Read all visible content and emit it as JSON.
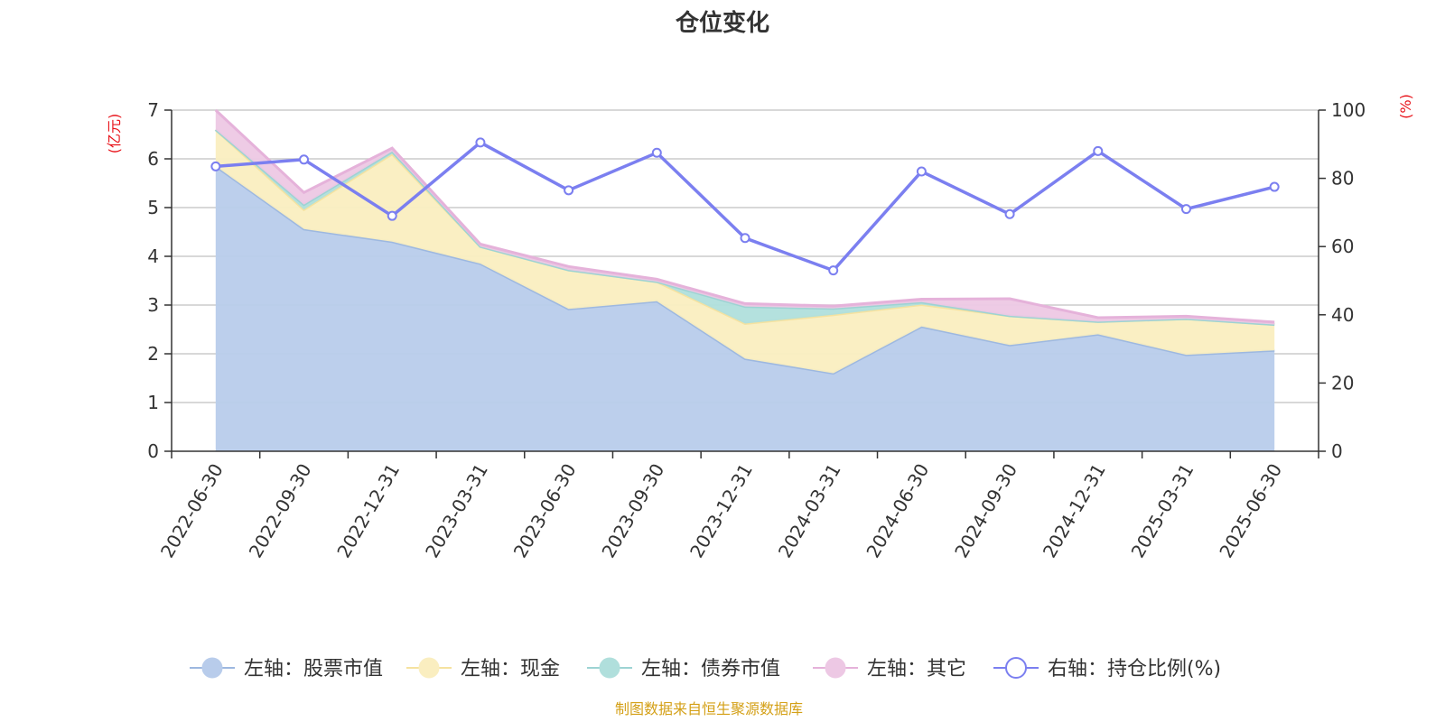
{
  "chart_data": {
    "type": "area",
    "title": "仓位变化",
    "left_axis": {
      "unit": "(亿元)",
      "ylim": [
        0,
        7
      ],
      "ticks": [
        "0",
        "1",
        "2",
        "3",
        "4",
        "5",
        "6",
        "7"
      ]
    },
    "right_axis": {
      "unit": "(%)",
      "ylim": [
        0,
        100
      ],
      "ticks": [
        "0",
        "20",
        "40",
        "60",
        "80",
        "100"
      ]
    },
    "categories": [
      "2022-06-30",
      "2022-09-30",
      "2022-12-31",
      "2023-03-31",
      "2023-06-30",
      "2023-09-30",
      "2023-12-31",
      "2024-03-31",
      "2024-06-30",
      "2024-09-30",
      "2024-12-31",
      "2025-03-31",
      "2025-06-30"
    ],
    "stacked_series": [
      {
        "name": "左轴：股票市值",
        "color": "#9db8e0",
        "fill": "#b8cceb",
        "values": [
          5.85,
          4.56,
          4.3,
          3.85,
          2.92,
          3.08,
          1.9,
          1.6,
          2.56,
          2.18,
          2.4,
          1.98,
          2.07
        ]
      },
      {
        "name": "左轴：现金",
        "color": "#f5e2a0",
        "fill": "#faeec0",
        "values": [
          0.75,
          0.4,
          1.8,
          0.35,
          0.8,
          0.4,
          0.72,
          1.2,
          0.45,
          0.6,
          0.26,
          0.74,
          0.53
        ]
      },
      {
        "name": "左轴：债券市值",
        "color": "#9dd3d3",
        "fill": "#b0dfdc",
        "values": [
          0.0,
          0.1,
          0.05,
          0.0,
          0.0,
          0.0,
          0.35,
          0.13,
          0.05,
          0.0,
          0.0,
          0.0,
          0.0
        ]
      },
      {
        "name": "左轴：其它",
        "color": "#e5b2da",
        "fill": "#edc8e4",
        "values": [
          0.4,
          0.25,
          0.07,
          0.05,
          0.07,
          0.05,
          0.06,
          0.05,
          0.06,
          0.35,
          0.08,
          0.05,
          0.05
        ]
      }
    ],
    "line_series": {
      "name": "右轴：持仓比例(%)",
      "color": "#7b7ff0",
      "values": [
        83.5,
        85.5,
        69.0,
        90.5,
        76.5,
        87.5,
        62.5,
        53.0,
        82.0,
        69.5,
        88.0,
        71.0,
        77.5
      ]
    },
    "grid": true,
    "legend_position": "bottom",
    "source_note": "制图数据来自恒生聚源数据库"
  }
}
